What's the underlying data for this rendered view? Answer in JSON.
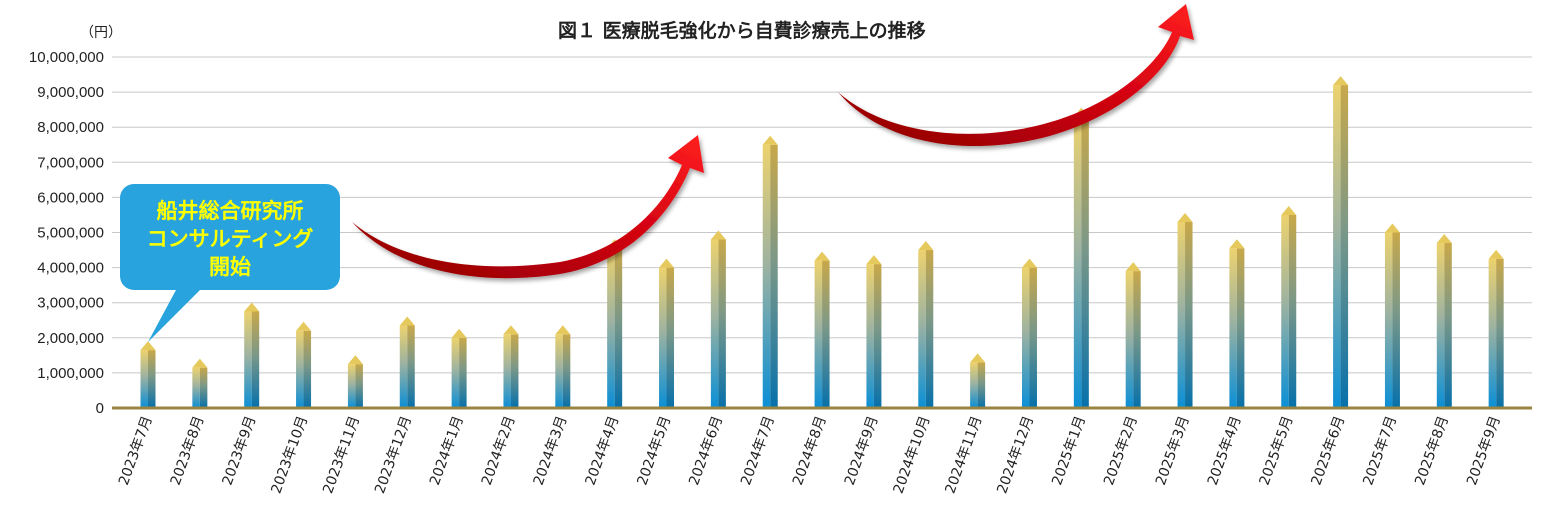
{
  "chart_data": {
    "type": "bar",
    "title": "図１ 医療脱毛強化から自費診療売上の推移",
    "unit": "（円）",
    "ylim": [
      0,
      10000000
    ],
    "yticks": [
      "0",
      "1,000,000",
      "2,000,000",
      "3,000,000",
      "4,000,000",
      "5,000,000",
      "6,000,000",
      "7,000,000",
      "8,000,000",
      "9,000,000",
      "10,000,000"
    ],
    "grid": true,
    "categories": [
      "2023年7月",
      "2023年8月",
      "2023年9月",
      "2023年10月",
      "2023年11月",
      "2023年12月",
      "2024年1月",
      "2024年2月",
      "2024年3月",
      "2024年4月",
      "2024年5月",
      "2024年6月",
      "2024年7月",
      "2024年8月",
      "2024年9月",
      "2024年10月",
      "2024年11月",
      "2024年12月",
      "2025年1月",
      "2025年2月",
      "2025年3月",
      "2025年4月",
      "2025年5月",
      "2025年6月",
      "2025年7月",
      "2025年8月",
      "2025年9月"
    ],
    "values": [
      1650000,
      1150000,
      2750000,
      2200000,
      1250000,
      2350000,
      2000000,
      2100000,
      2100000,
      4550000,
      4000000,
      4800000,
      7500000,
      4200000,
      4100000,
      4500000,
      1300000,
      4000000,
      8300000,
      3900000,
      5300000,
      4550000,
      5500000,
      9200000,
      5000000,
      4700000,
      4250000
    ],
    "annotation": {
      "lines": [
        "船井総合研究所",
        "コンサルティング",
        "開始"
      ],
      "color": "#29a3dd",
      "text_color": "#ffff00"
    },
    "colors": {
      "bar_top": "#e8c864",
      "bar_bottom": "#0a8fd6",
      "baseline": "#9a8540",
      "arrow": "#e00010"
    }
  }
}
